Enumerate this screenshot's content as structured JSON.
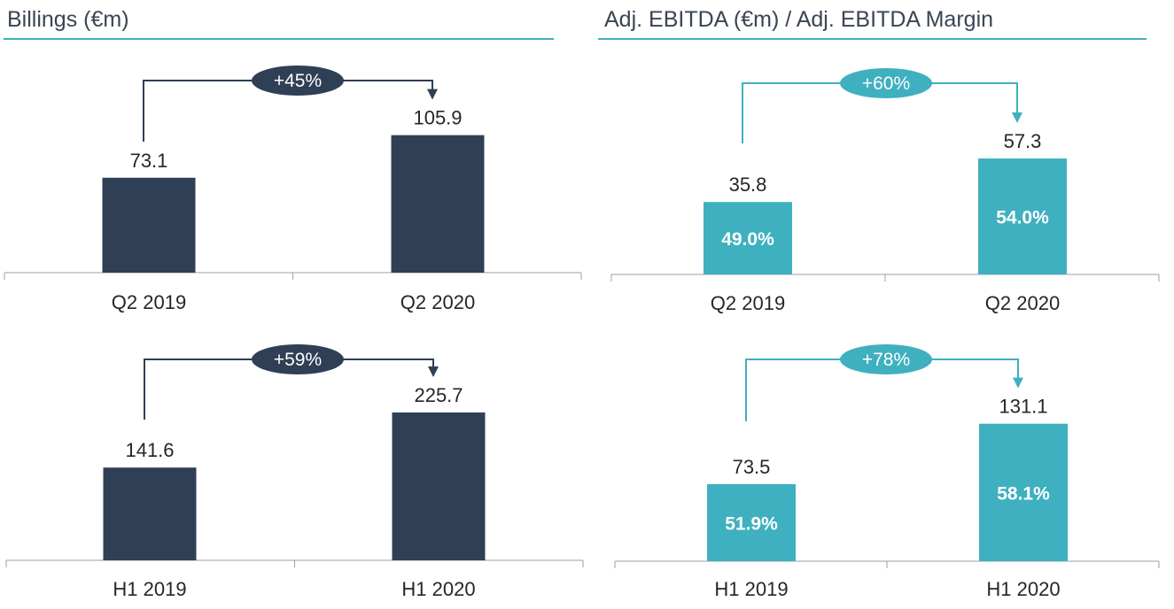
{
  "titles": {
    "left": "Billings (€m)",
    "right": "Adj. EBITDA (€m) / Adj. EBITDA Margin"
  },
  "colors": {
    "navy": "#2f3f55",
    "teal": "#3fb0bf",
    "axis": "#9aa0a6",
    "text": "#262626",
    "title_rule": "#3fb0bf"
  },
  "chart_data": [
    {
      "type": "bar",
      "categories": [
        "Q2 2019",
        "Q2 2020"
      ],
      "values": [
        73.1,
        105.9
      ],
      "value_labels": [
        "73.1",
        "105.9"
      ],
      "growth_label": "+45%",
      "color": "#2f3f55",
      "ylim": [
        0,
        120
      ]
    },
    {
      "type": "bar",
      "categories": [
        "H1 2019",
        "H1 2020"
      ],
      "values": [
        141.6,
        225.7
      ],
      "value_labels": [
        "141.6",
        "225.7"
      ],
      "growth_label": "+59%",
      "color": "#2f3f55",
      "ylim": [
        0,
        250
      ]
    },
    {
      "type": "bar",
      "categories": [
        "Q2 2019",
        "Q2 2020"
      ],
      "values": [
        35.8,
        57.3
      ],
      "value_labels": [
        "35.8",
        "57.3"
      ],
      "inner_labels": [
        "49.0%",
        "54.0%"
      ],
      "growth_label": "+60%",
      "color": "#3fb0bf",
      "ylim": [
        0,
        70
      ]
    },
    {
      "type": "bar",
      "categories": [
        "H1 2019",
        "H1 2020"
      ],
      "values": [
        73.5,
        131.1
      ],
      "value_labels": [
        "73.5",
        "131.1"
      ],
      "inner_labels": [
        "51.9%",
        "58.1%"
      ],
      "growth_label": "+78%",
      "color": "#3fb0bf",
      "ylim": [
        0,
        157
      ]
    }
  ]
}
